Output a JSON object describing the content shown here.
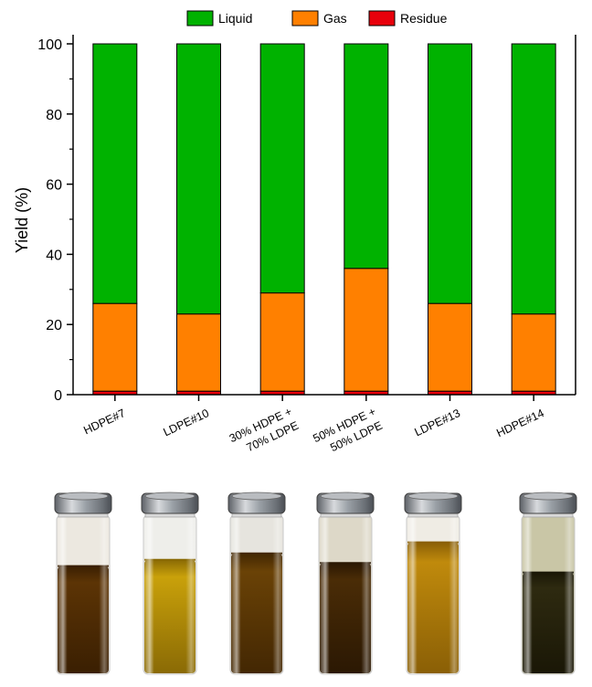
{
  "chart_data": {
    "type": "bar",
    "stacked": true,
    "categories": [
      [
        "HDPE#7"
      ],
      [
        "LDPE#10"
      ],
      [
        "30% HDPE +",
        "70% LDPE"
      ],
      [
        "50% HDPE +",
        "50% LDPE"
      ],
      [
        "LDPE#13"
      ],
      [
        "HDPE#14"
      ]
    ],
    "series": [
      {
        "name": "Residue",
        "color": "#e8000b",
        "values": [
          1,
          1,
          1,
          1,
          1,
          1
        ]
      },
      {
        "name": "Gas",
        "color": "#ff8000",
        "values": [
          25,
          22,
          28,
          35,
          25,
          22
        ]
      },
      {
        "name": "Liquid",
        "color": "#00b200",
        "values": [
          74,
          77,
          71,
          64,
          74,
          77
        ]
      }
    ],
    "legend_order": [
      "Liquid",
      "Gas",
      "Residue"
    ],
    "legend_position": "top-center",
    "xlabel": "",
    "ylabel": "Yield (%)",
    "ylim": [
      0,
      100
    ],
    "yticks": [
      0,
      20,
      40,
      60,
      80,
      100
    ],
    "grid": false
  },
  "vials": [
    {
      "oil_color": "#5c3405",
      "oil_dark": "#3a1f02",
      "oil_level": 0.68,
      "headspace_tint": "#ece8e0"
    },
    {
      "oil_color": "#c9a10a",
      "oil_dark": "#8a6a05",
      "oil_level": 0.72,
      "headspace_tint": "#eeeeea"
    },
    {
      "oil_color": "#6a4206",
      "oil_dark": "#432703",
      "oil_level": 0.76,
      "headspace_tint": "#e6e4de"
    },
    {
      "oil_color": "#4a2c06",
      "oil_dark": "#2b1803",
      "oil_level": 0.7,
      "headspace_tint": "#ddd8c8"
    },
    {
      "oil_color": "#c08a0c",
      "oil_dark": "#8a5f06",
      "oil_level": 0.83,
      "headspace_tint": "#efece4"
    },
    {
      "oil_color": "#2e2a10",
      "oil_dark": "#1a1706",
      "oil_level": 0.64,
      "headspace_tint": "#c9c6a6"
    }
  ]
}
